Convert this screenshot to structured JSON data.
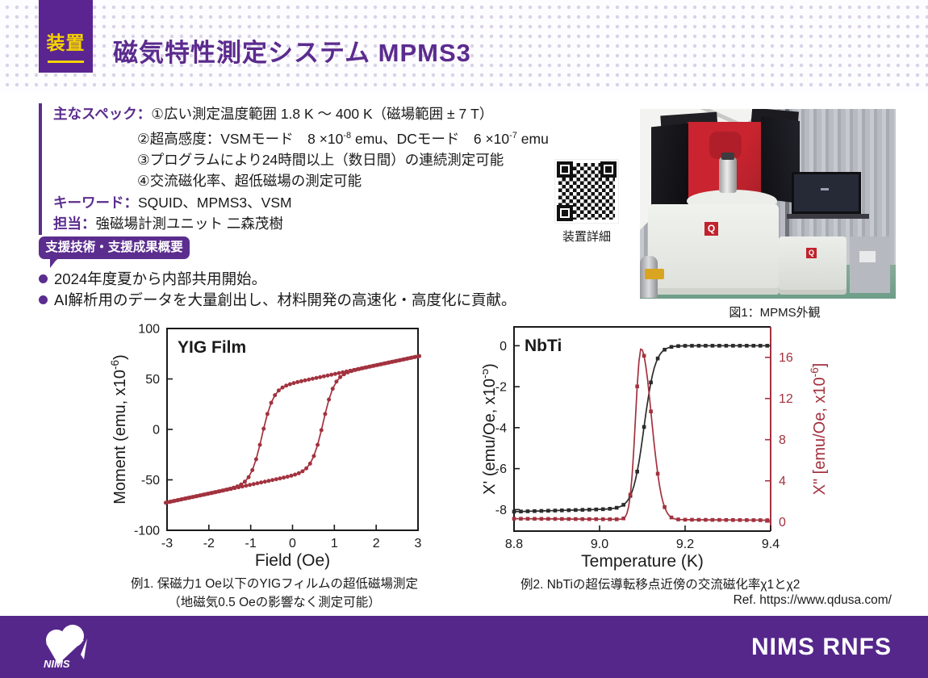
{
  "palette": {
    "accent_purple": "#5b2d8e",
    "badge_purple": "#5a2590",
    "badge_yellow": "#f5d300",
    "footer_purple": "#55278b",
    "chart_red": "#a2323f",
    "chart_black": "#2b2b2b"
  },
  "header": {
    "badge_label": "装置",
    "title": "磁気特性測定システム MPMS3"
  },
  "specs": {
    "label": "主なスペック：",
    "line1": "①広い測定温度範囲 1.8 K ～ 400 K（磁場範囲 ± 7 T）",
    "line2_parts": [
      {
        "t": "②超高感度：VSMモード　8 ×10"
      },
      {
        "t": "-8",
        "sup": true
      },
      {
        "t": " emu、DCモード　6 ×10"
      },
      {
        "t": "-7",
        "sup": true
      },
      {
        "t": " emu"
      }
    ],
    "line3": "③プログラムにより24時間以上（数日間）の連続測定可能",
    "line4": "④交流磁化率、超低磁場の測定可能",
    "keywords_label": "キーワード：",
    "keywords": "SQUID、MPMS3、VSM",
    "staff_label": "担当：",
    "staff": "強磁場計測ユニット 二森茂樹"
  },
  "qr": {
    "label": "装置詳細"
  },
  "photo": {
    "caption": "図1：MPMS外観",
    "q_logo": "Q"
  },
  "support": {
    "badge": "支援技術・支援成果概要",
    "bullets": [
      "2024年度夏から内部共用開始。",
      "AI解析用のデータを大量創出し、材料開発の高速化・高度化に貢献。"
    ]
  },
  "examples": {
    "ex1_line1": "例1. 保磁力1 Oe以下のYIGフィルムの超低磁場測定",
    "ex1_line2": "（地磁気0.5 Oeの影響なく測定可能）",
    "ex2": "例2. NbTiの超伝導転移点近傍の交流磁化率χ1とχ2",
    "ref": "Ref. https://www.qdusa.com/"
  },
  "footer": {
    "logo_text": "NIMS",
    "brand": "NIMS RNFS"
  },
  "chart_data": [
    {
      "id": "yig",
      "type": "line",
      "title": "YIG Film",
      "xlabel": "Field (Oe)",
      "ylabel_parts": [
        {
          "t": "Moment (emu, x10"
        },
        {
          "t": "-6",
          "sup": true
        },
        {
          "t": ")"
        }
      ],
      "xlim": [
        -3,
        3
      ],
      "ylim": [
        -100,
        100
      ],
      "xticks": [
        -3,
        -2,
        -1,
        0,
        1,
        2,
        3
      ],
      "xtick_labels": [
        "-3",
        "-2",
        "-1",
        "0",
        "1",
        "2",
        "3"
      ],
      "yticks": [
        -100,
        -50,
        0,
        50,
        100
      ],
      "ytick_labels": [
        "-100",
        "-50",
        "0",
        "50",
        "100"
      ],
      "grid": false,
      "legend": "none",
      "color": "#a2323f",
      "marker": "circle",
      "coercive_field_Oe": 0.73,
      "moment_at_3Oe": 72,
      "series": [
        {
          "name": "field-up branch",
          "model": "tanh",
          "A": 46,
          "xc": 0.73,
          "w": 0.27,
          "s": 8.8,
          "x_from": -3,
          "x_to": 3,
          "step": 0.09
        },
        {
          "name": "field-down branch",
          "model": "tanh",
          "A": 46,
          "xc": -0.73,
          "w": 0.27,
          "s": 8.8,
          "x_from": 3,
          "x_to": -3,
          "step": -0.09
        }
      ],
      "key_points_up": [
        [
          -3,
          -72
        ],
        [
          -2,
          -64
        ],
        [
          -1,
          -57
        ],
        [
          0,
          -46
        ],
        [
          0.4,
          -35
        ],
        [
          0.73,
          0
        ],
        [
          1,
          44
        ],
        [
          1.5,
          59
        ],
        [
          2,
          63
        ],
        [
          3,
          72
        ]
      ],
      "key_points_down": [
        [
          3,
          72
        ],
        [
          2,
          64
        ],
        [
          1,
          57
        ],
        [
          0,
          46
        ],
        [
          -0.4,
          35
        ],
        [
          -0.73,
          0
        ],
        [
          -1,
          -44
        ],
        [
          -1.5,
          -59
        ],
        [
          -2,
          -63
        ],
        [
          -3,
          -72
        ]
      ]
    },
    {
      "id": "nbti",
      "type": "line",
      "title": "NbTi",
      "xlabel": "Temperature (K)",
      "ylabel_left_parts": [
        {
          "t": "X' (emu/Oe, x10"
        },
        {
          "t": "-5",
          "sup": true
        },
        {
          "t": ")"
        }
      ],
      "ylabel_right_parts": [
        {
          "t": "X\" [emu/Oe, x10"
        },
        {
          "t": "-6",
          "sup": true
        },
        {
          "t": "]"
        }
      ],
      "xlim": [
        8.8,
        9.4
      ],
      "ylim_left": [
        -9.05,
        0.92
      ],
      "ylim_right": [
        -0.886,
        18.96
      ],
      "xticks": [
        8.8,
        9.0,
        9.2,
        9.4
      ],
      "xtick_labels": [
        "8.8",
        "9.0",
        "9.2",
        "9.4"
      ],
      "yticks_left": [
        0,
        -2,
        -4,
        -6,
        -8
      ],
      "ytick_labels_left": [
        "0",
        "-2",
        "-4",
        "-6",
        "-8"
      ],
      "yticks_right": [
        16,
        12,
        8,
        4,
        0
      ],
      "ytick_labels_right": [
        "16",
        "12",
        "8",
        "4",
        "0"
      ],
      "grid": false,
      "legend": "none",
      "marker": "square",
      "right_color": "#a2323f",
      "transition_temperature_K": 9.1,
      "series": [
        {
          "name": "X' (χ1)",
          "axis": "left",
          "color": "#2b2b2b",
          "model": "sigmoid",
          "A": 8.1,
          "tilt": 0.55,
          "x0": 8.8,
          "xc": 9.104,
          "w": 0.013,
          "x_from": 8.8,
          "x_to": 9.4,
          "step": 0.004,
          "marker_every": 4
        },
        {
          "name": "X\" (χ2)",
          "axis": "right",
          "color": "#a2323f",
          "model": "peak",
          "base": 0.32,
          "btilt": -0.25,
          "x0": 8.8,
          "H": 16.6,
          "xp": 9.097,
          "wl": 0.018,
          "wr": 0.034,
          "x_from": 8.8,
          "x_to": 9.4,
          "step": 0.004,
          "marker_every": 4
        }
      ],
      "key_points_x1": [
        [
          8.8,
          -8.15
        ],
        [
          9.0,
          -8.05
        ],
        [
          9.05,
          -7.9
        ],
        [
          9.09,
          -6.1
        ],
        [
          9.1,
          -4.6
        ],
        [
          9.11,
          -2.5
        ],
        [
          9.12,
          -1.4
        ],
        [
          9.15,
          -0.5
        ],
        [
          9.2,
          -0.05
        ],
        [
          9.4,
          0
        ]
      ],
      "key_points_x2": [
        [
          8.8,
          0.32
        ],
        [
          9.0,
          0.28
        ],
        [
          9.05,
          0.6
        ],
        [
          9.07,
          2.0
        ],
        [
          9.085,
          11
        ],
        [
          9.097,
          16.9
        ],
        [
          9.11,
          14
        ],
        [
          9.12,
          10.5
        ],
        [
          9.13,
          6.8
        ],
        [
          9.15,
          1.9
        ],
        [
          9.2,
          0.3
        ],
        [
          9.4,
          0.17
        ]
      ]
    }
  ]
}
